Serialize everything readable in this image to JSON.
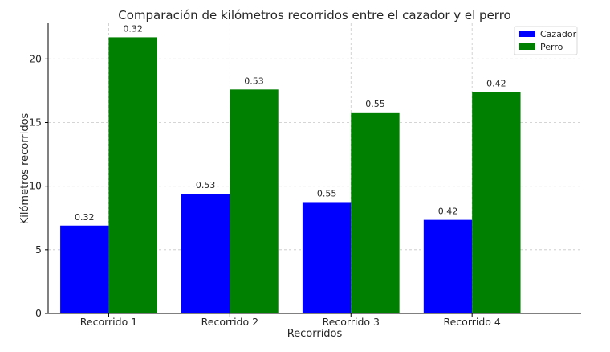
{
  "chart_data": {
    "type": "bar",
    "title": "Comparación de kilómetros recorridos entre el cazador y el perro",
    "xlabel": "Recorridos",
    "ylabel": "Kilómetros recorridos",
    "categories": [
      "Recorrido 1",
      "Recorrido 2",
      "Recorrido 3",
      "Recorrido 4"
    ],
    "series": [
      {
        "name": "Cazador",
        "color": "#0000ff",
        "values": [
          6.9,
          9.4,
          8.75,
          7.35
        ],
        "labels": [
          "0.32",
          "0.53",
          "0.55",
          "0.42"
        ]
      },
      {
        "name": "Perro",
        "color": "#008000",
        "values": [
          21.7,
          17.6,
          15.8,
          17.4
        ],
        "labels": [
          "0.32",
          "0.53",
          "0.55",
          "0.42"
        ]
      }
    ],
    "ylim": [
      0,
      22.8
    ],
    "yticks": [
      0,
      5,
      10,
      15,
      20
    ],
    "grid": true,
    "legend_position": "top-right"
  }
}
